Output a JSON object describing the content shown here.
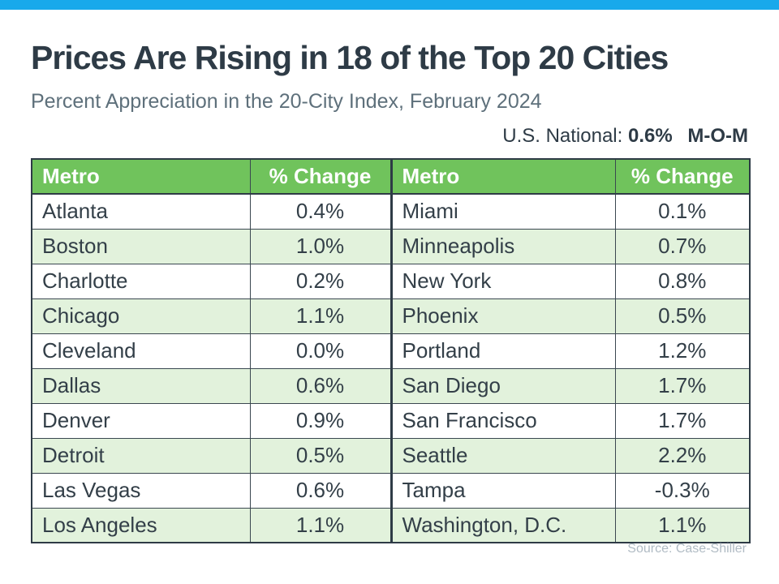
{
  "page": {
    "title": "Prices Are Rising in 18 of the Top 20 Cities",
    "subtitle": "Percent Appreciation in the 20-City Index, February 2024",
    "national_label": "U.S. National:",
    "national_value": "0.6%",
    "national_period": "M-O-M",
    "source": "Source: Case-Shiller"
  },
  "colors": {
    "accent_blue": "#18A9EB",
    "header_green": "#70C35C",
    "row_stripe_green": "#E2F2DC",
    "text_dark": "#2E3B46",
    "subtitle_gray": "#5E707B",
    "source_gray": "#B0BBC4"
  },
  "chart_data": {
    "type": "table",
    "title": "Prices Are Rising in 18 of the Top 20 Cities",
    "subtitle": "Percent Appreciation in the 20-City Index, February 2024",
    "national": {
      "label": "U.S. National:",
      "value": "0.6%",
      "period": "M-O-M"
    },
    "columns": [
      "Metro",
      "% Change",
      "Metro",
      "% Change"
    ],
    "rows": [
      {
        "left": {
          "metro": "Atlanta",
          "change": "0.4%"
        },
        "right": {
          "metro": "Miami",
          "change": "0.1%"
        }
      },
      {
        "left": {
          "metro": "Boston",
          "change": "1.0%"
        },
        "right": {
          "metro": "Minneapolis",
          "change": "0.7%"
        }
      },
      {
        "left": {
          "metro": "Charlotte",
          "change": "0.2%"
        },
        "right": {
          "metro": "New York",
          "change": "0.8%"
        }
      },
      {
        "left": {
          "metro": "Chicago",
          "change": "1.1%"
        },
        "right": {
          "metro": "Phoenix",
          "change": "0.5%"
        }
      },
      {
        "left": {
          "metro": "Cleveland",
          "change": "0.0%"
        },
        "right": {
          "metro": "Portland",
          "change": "1.2%"
        }
      },
      {
        "left": {
          "metro": "Dallas",
          "change": "0.6%"
        },
        "right": {
          "metro": "San Diego",
          "change": "1.7%"
        }
      },
      {
        "left": {
          "metro": "Denver",
          "change": "0.9%"
        },
        "right": {
          "metro": "San Francisco",
          "change": "1.7%"
        }
      },
      {
        "left": {
          "metro": "Detroit",
          "change": "0.5%"
        },
        "right": {
          "metro": "Seattle",
          "change": "2.2%"
        }
      },
      {
        "left": {
          "metro": "Las Vegas",
          "change": "0.6%"
        },
        "right": {
          "metro": "Tampa",
          "change": "-0.3%"
        }
      },
      {
        "left": {
          "metro": "Los Angeles",
          "change": "1.1%"
        },
        "right": {
          "metro": "Washington, D.C.",
          "change": "1.1%"
        }
      }
    ],
    "source": "Source: Case-Shiller"
  }
}
